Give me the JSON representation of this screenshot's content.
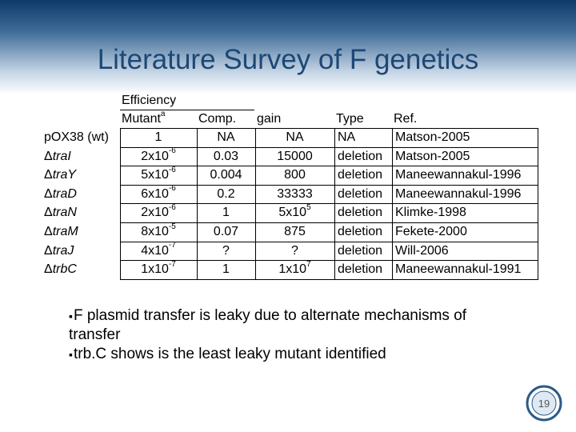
{
  "header": {
    "title": "Literature Survey of F genetics"
  },
  "table": {
    "group_label": "Efficiency",
    "columns": [
      {
        "base": "Mutant",
        "exp": "a"
      },
      "Comp.",
      "gain",
      "Type",
      "Ref."
    ],
    "rows": [
      {
        "mutant": {
          "prefix": "",
          "name": "pOX38 (wt)"
        },
        "cells": [
          "1",
          "NA",
          "NA",
          "NA",
          "Matson-2005"
        ]
      },
      {
        "mutant": {
          "prefix": "Δ",
          "name": "traI"
        },
        "cells": [
          {
            "base": "2x10",
            "exp": "-6"
          },
          "0.03",
          "15000",
          "deletion",
          "Matson-2005"
        ]
      },
      {
        "mutant": {
          "prefix": "Δ",
          "name": "traY"
        },
        "cells": [
          {
            "base": "5x10",
            "exp": "-6"
          },
          "0.004",
          "800",
          "deletion",
          "Maneewannakul-1996"
        ]
      },
      {
        "mutant": {
          "prefix": "Δ",
          "name": "traD"
        },
        "cells": [
          {
            "base": "6x10",
            "exp": "-6"
          },
          "0.2",
          "33333",
          "deletion",
          "Maneewannakul-1996"
        ]
      },
      {
        "mutant": {
          "prefix": "Δ",
          "name": "traN"
        },
        "cells": [
          {
            "base": "2x10",
            "exp": "-6"
          },
          "1",
          {
            "base": "5x10",
            "exp": "5"
          },
          "deletion",
          "Klimke-1998"
        ]
      },
      {
        "mutant": {
          "prefix": "Δ",
          "name": "traM"
        },
        "cells": [
          {
            "base": "8x10",
            "exp": "-5"
          },
          "0.07",
          "875",
          "deletion",
          "Fekete-2000"
        ]
      },
      {
        "mutant": {
          "prefix": "Δ",
          "name": "traJ"
        },
        "cells": [
          {
            "base": "4x10",
            "exp": "-7"
          },
          "?",
          "?",
          "deletion",
          "Will-2006"
        ]
      },
      {
        "mutant": {
          "prefix": "Δ",
          "name": "trbC"
        },
        "cells": [
          {
            "base": "1x10",
            "exp": "-7"
          },
          "1",
          {
            "base": "1x10",
            "exp": "7"
          },
          "deletion",
          "Maneewannakul-1991"
        ]
      }
    ]
  },
  "bullets": [
    "F plasmid transfer is leaky due to alternate mechanisms of transfer",
    "trb.C shows is the least leaky mutant identified"
  ],
  "footer": {
    "page_number": "19"
  }
}
